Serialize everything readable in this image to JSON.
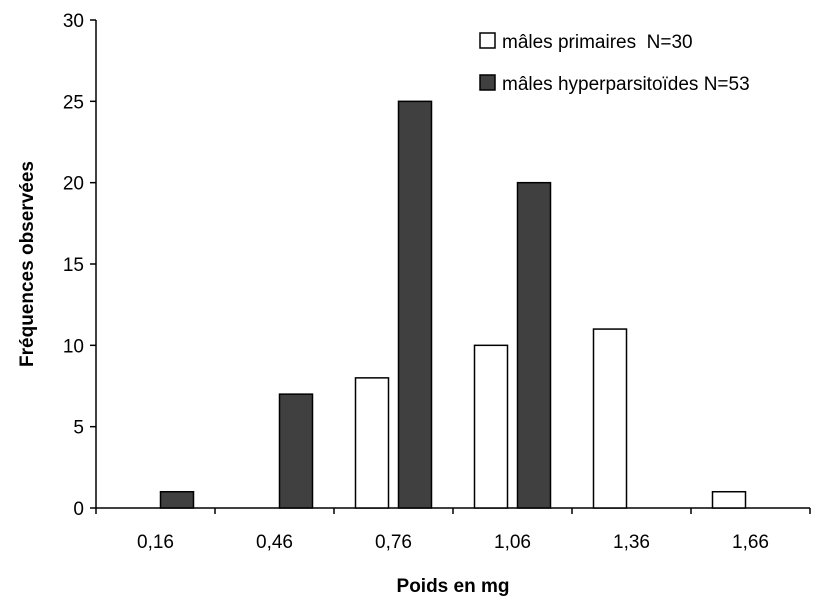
{
  "chart_data": {
    "type": "bar",
    "xlabel": "Poids en mg",
    "ylabel": "Fréquences observées",
    "categories": [
      "0,16",
      "0,46",
      "0,76",
      "1,06",
      "1,36",
      "1,66"
    ],
    "series": [
      {
        "name": "mâles primaires  N=30",
        "color": "#ffffff",
        "values": [
          0,
          0,
          8,
          10,
          11,
          1
        ]
      },
      {
        "name": "mâles hyperparsitoïdes N=53",
        "color": "#404040",
        "values": [
          1,
          7,
          25,
          20,
          0,
          0
        ]
      }
    ],
    "ylim": [
      0,
      30
    ],
    "yticks": [
      0,
      5,
      10,
      15,
      20,
      25,
      30
    ],
    "grid": false,
    "legend_position": "top-right"
  }
}
